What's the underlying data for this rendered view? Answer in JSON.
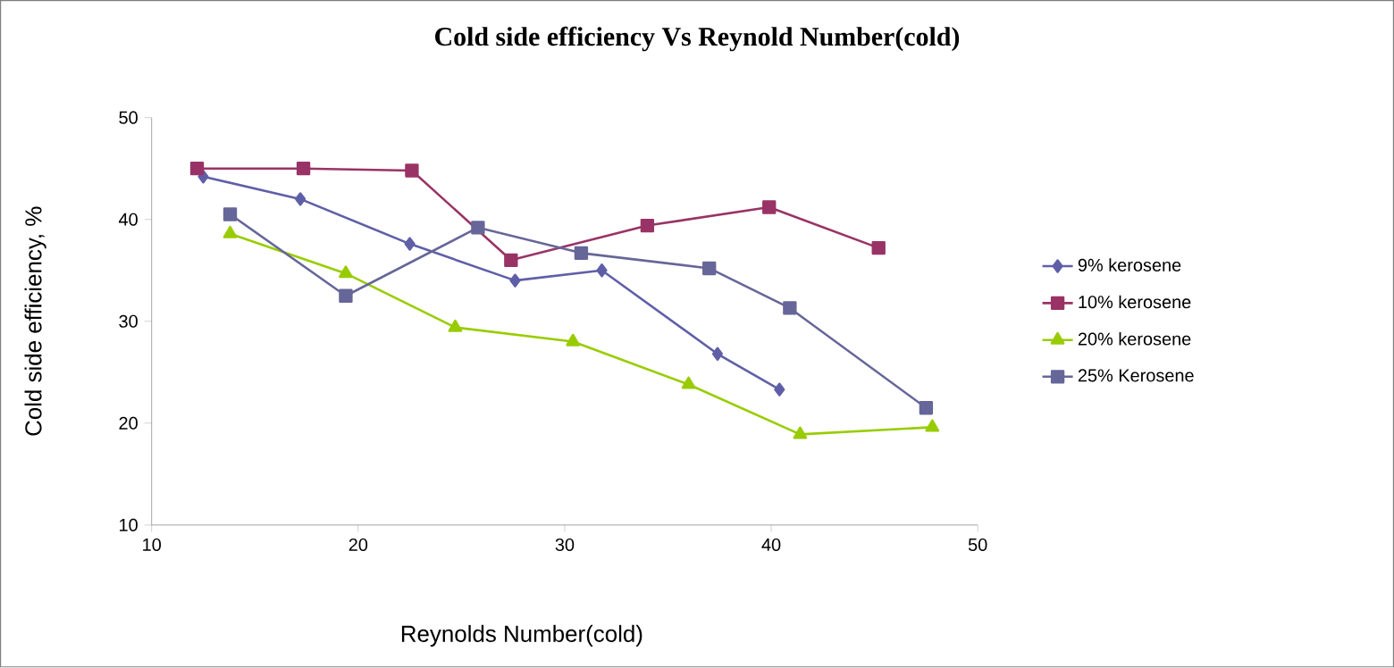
{
  "chart_data": {
    "type": "line",
    "title": "Cold side efficiency Vs Reynold Number(cold)",
    "xlabel": "Reynolds Number(cold)",
    "ylabel": "Cold side efficiency, %",
    "xlim": [
      10,
      50
    ],
    "xticks": [
      10,
      20,
      30,
      40,
      50
    ],
    "ylim": [
      10,
      50
    ],
    "yticks": [
      10,
      20,
      30,
      40,
      50
    ],
    "legend": "right",
    "line_style": "solid",
    "series": [
      {
        "name": "9% kerosene",
        "color": "#5f5fa8",
        "marker": "diamond",
        "x": [
          12.5,
          17.2,
          22.5,
          27.6,
          31.8,
          37.4,
          40.4
        ],
        "values": [
          44.2,
          42.0,
          37.6,
          34.0,
          35.0,
          26.8,
          23.3
        ]
      },
      {
        "name": "10% kerosene",
        "color": "#993366",
        "marker": "square",
        "x": [
          12.2,
          17.35,
          22.6,
          27.4,
          34.0,
          39.9,
          45.2
        ],
        "values": [
          45.0,
          45.0,
          44.8,
          36.0,
          39.4,
          41.2,
          37.2
        ]
      },
      {
        "name": "20% kerosene",
        "color": "#99cc00",
        "marker": "triangle",
        "x": [
          13.8,
          19.4,
          24.7,
          30.4,
          36.0,
          41.4,
          47.8
        ],
        "values": [
          38.6,
          34.7,
          29.4,
          28.0,
          23.8,
          18.9,
          19.6
        ]
      },
      {
        "name": "25% Kerosene",
        "color": "#666699",
        "marker": "square",
        "x": [
          13.8,
          19.4,
          25.8,
          30.8,
          37.0,
          40.9,
          47.5
        ],
        "values": [
          40.5,
          32.5,
          39.2,
          36.7,
          35.2,
          31.3,
          21.5
        ]
      }
    ]
  }
}
